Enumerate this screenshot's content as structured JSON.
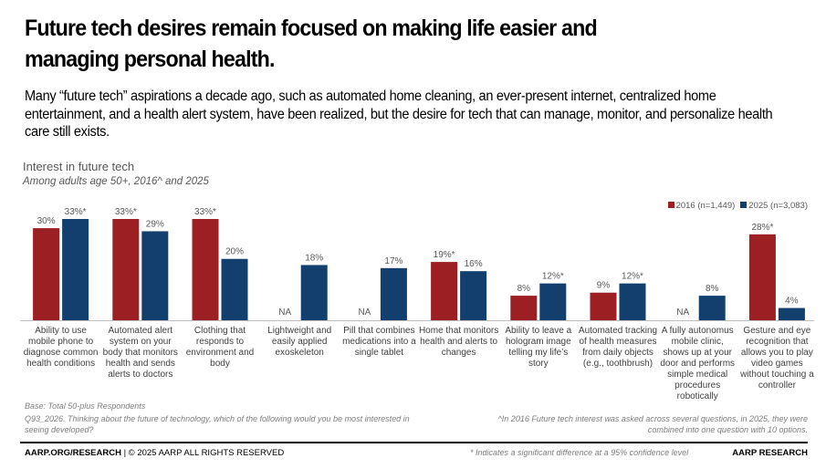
{
  "header": {
    "title": "Future tech desires remain focused on making life easier and managing personal health.",
    "intro": "Many “future tech” aspirations a decade ago, such as automated home cleaning, an ever-present internet, centralized home entertainment, and a health alert system, have been realized, but the desire for tech that can manage, monitor, and personalize health care still exists."
  },
  "chart_data": {
    "type": "bar",
    "title": "Interest in future tech",
    "subtitle": "Among adults age 50+, 2016^ and 2025",
    "ylim": [
      0,
      35
    ],
    "grid": false,
    "legend_position": "top-right",
    "categories": [
      "Ability to use mobile phone to diagnose common health conditions",
      "Automated alert system on your body that monitors health and sends alerts to  doctors",
      "Clothing that responds to environment and body",
      "Lightweight and easily applied exoskeleton",
      "Pill that combines medications into a single tablet",
      "Home that monitors health and alerts to changes",
      "Ability to leave a hologram image telling my life’s story",
      "Automated tracking of health measures from daily objects (e.g., toothbrush)",
      "A fully autonomus mobile clinic, shows up at your door and performs simple medical procedures robotically",
      "Gesture and eye recognition that allows you to play video games without touching a controller"
    ],
    "series": [
      {
        "name": "2016 (n=1,449)",
        "color": "#9b1f23",
        "values": [
          30,
          33,
          33,
          null,
          null,
          19,
          8,
          9,
          null,
          28
        ],
        "labels": [
          "30%",
          "33%*",
          "33%*",
          "NA",
          "NA",
          "19%*",
          "8%",
          "9%",
          "NA",
          "28%*"
        ]
      },
      {
        "name": "2025 (n=3,083)",
        "color": "#123f6d",
        "values": [
          33,
          29,
          20,
          18,
          17,
          16,
          12,
          12,
          8,
          4
        ],
        "labels": [
          "33%*",
          "29%",
          "20%",
          "18%",
          "17%",
          "16%",
          "12%*",
          "12%*",
          "8%",
          "4%"
        ]
      }
    ]
  },
  "footnotes": {
    "base": "Base: Total 50-plus Respondents",
    "question": "Q93_2026. Thinking about the future of technology, which of the following would you be most interested in seeing developed?",
    "note": "^In 2016 Future tech interest was asked across several questions, in 2025, they were combined into one question with 10 options.",
    "significance": "* Indicates a significant difference at a 95% confidence level"
  },
  "footer": {
    "site": "AARP.ORG/RESEARCH",
    "copyright": " | © 2025 AARP ALL RIGHTS RESERVED",
    "brand": "AARP RESEARCH"
  }
}
